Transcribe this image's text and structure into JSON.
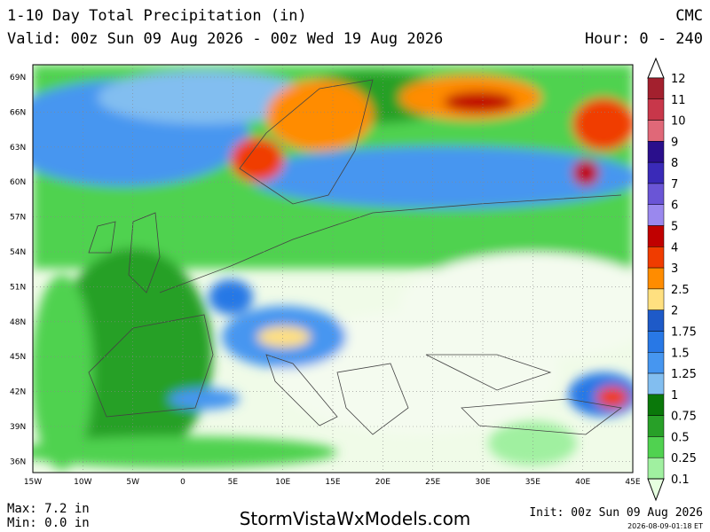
{
  "header": {
    "title": "1-10 Day Total Precipitation (in)",
    "model": "CMC",
    "valid": "Valid: 00z Sun 09 Aug 2026 - 00z Wed 19 Aug 2026",
    "hour": "Hour: 0 - 240"
  },
  "map": {
    "lat_labels": [
      "69N",
      "66N",
      "63N",
      "60N",
      "57N",
      "54N",
      "51N",
      "48N",
      "45N",
      "42N",
      "39N",
      "36N"
    ],
    "lon_labels": [
      "15W",
      "10W",
      "5W",
      "0",
      "5E",
      "10E",
      "15E",
      "20E",
      "25E",
      "30E",
      "35E",
      "40E",
      "45E"
    ]
  },
  "colorbar": {
    "labels": [
      "12",
      "11",
      "10",
      "9",
      "8",
      "7",
      "6",
      "5",
      "4",
      "3",
      "2.5",
      "2",
      "1.75",
      "1.5",
      "1.25",
      "1",
      "0.75",
      "0.5",
      "0.25",
      "0.1"
    ],
    "colors": [
      "#a3202e",
      "#c8374a",
      "#e06878",
      "#2a0f8c",
      "#3a2ab8",
      "#6a55d6",
      "#9a88ee",
      "#c00000",
      "#f03c00",
      "#ff8c00",
      "#ffe080",
      "#1e5ac8",
      "#2878e6",
      "#4696f0",
      "#82bef0",
      "#0a780a",
      "#28a028",
      "#50d250",
      "#a0f0a0"
    ]
  },
  "footer": {
    "max": "Max: 7.2 in",
    "min": "Min: 0.0 in",
    "site": "StormVistaWxModels.com",
    "init": "Init: 00z Sun 09 Aug 2026",
    "stamp": "2026-08-09-01:18 ET"
  }
}
